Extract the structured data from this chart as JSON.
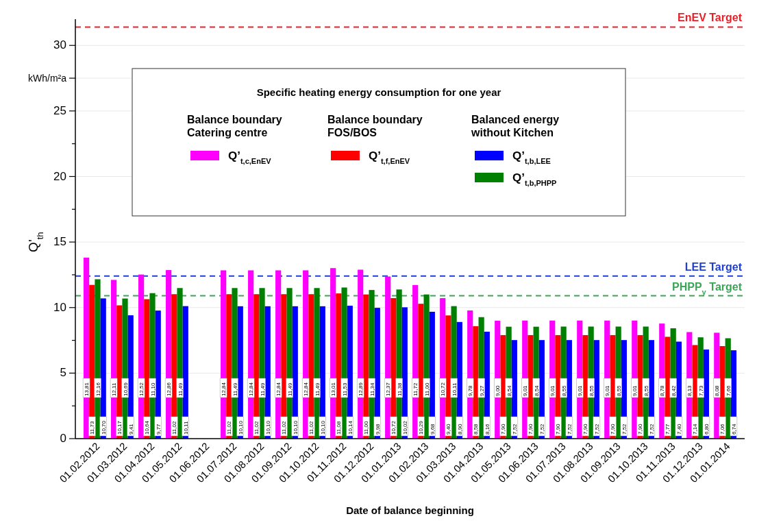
{
  "chart_data": {
    "type": "bar",
    "xlabel": "Date of balance beginning",
    "ylabel": "Q'$_{th}$",
    "legend_title": "Specific heating energy consumption for one year",
    "annotations": [
      "Balance boundary\nCatering centre",
      "Balance boundary\nFOS/BOS",
      "Balanced energy\nwithout Kitchen"
    ],
    "categories": [
      "01.02.2012",
      "01.03.2012",
      "01.04.2012",
      "01.05.2012",
      "01.06.2012",
      "01.07.2012",
      "01.08.2012",
      "01.09.2012",
      "01.10.2012",
      "01.11.2012",
      "01.12.2012",
      "01.01.2013",
      "01.02.2013",
      "01.03.2013",
      "01.04.2013",
      "01.05.2013",
      "01.06.2013",
      "01.07.2013",
      "01.08.2013",
      "01.09.2013",
      "01.10.2013",
      "01.11.2013",
      "01.12.2013",
      "01.01.2014"
    ],
    "series": [
      {
        "name": "Q’$_{t,c,EnEV}$",
        "color": "#ff00ff",
        "values": [
          13.81,
          12.11,
          12.52,
          12.86,
          null,
          12.84,
          12.84,
          12.84,
          12.84,
          13.01,
          12.89,
          12.37,
          11.72,
          10.72,
          9.78,
          9.0,
          9.01,
          9.01,
          9.01,
          9.01,
          9.01,
          8.78,
          8.13,
          8.08
        ],
        "value_labels": [
          "13,81",
          "12,11",
          "12,52",
          "12,86",
          null,
          "12,84",
          "12,84",
          "12,84",
          "12,84",
          "13,01",
          "12,89",
          "12,37",
          "11,72",
          "10,72",
          "9,78",
          "9,00",
          "9,01",
          "9,01",
          "9,01",
          "9,01",
          "9,01",
          "8,78",
          "8,13",
          "8,08"
        ]
      },
      {
        "name": "Q’$_{t,f,EnEV}$",
        "color": "#ff0000",
        "values": [
          11.73,
          10.17,
          10.64,
          11.02,
          null,
          11.02,
          11.02,
          11.02,
          11.02,
          11.08,
          11.0,
          10.72,
          10.29,
          9.4,
          8.58,
          7.9,
          7.9,
          7.9,
          7.9,
          7.9,
          7.9,
          7.77,
          7.14,
          7.06
        ],
        "value_labels": [
          "11,73",
          "10,17",
          "10,64",
          "11,02",
          null,
          "11,02",
          "11,02",
          "11,02",
          "11,02",
          "11,08",
          "11,00",
          "10,72",
          "10,29",
          "9,40",
          "8,58",
          "7,90",
          "7,90",
          "7,90",
          "7,90",
          "7,90",
          "7,90",
          "7,77",
          "7,14",
          "7,06"
        ]
      },
      {
        "name": "Q’$_{t,b,PHPP}$",
        "color": "#008000",
        "values": [
          12.16,
          10.69,
          11.1,
          11.49,
          null,
          11.49,
          11.49,
          11.49,
          11.49,
          11.53,
          11.34,
          11.38,
          11.0,
          10.11,
          9.27,
          8.54,
          8.54,
          8.55,
          8.55,
          8.55,
          8.55,
          8.42,
          7.73,
          7.66
        ],
        "value_labels": [
          "12,16",
          "10,69",
          "11,10",
          "11,49",
          null,
          "11,49",
          "11,49",
          "11,49",
          "11,49",
          "11,53",
          "11,34",
          "11,38",
          "11,00",
          "10,11",
          "9,27",
          "8,54",
          "8,54",
          "8,55",
          "8,55",
          "8,55",
          "8,55",
          "8,42",
          "7,73",
          "7,66"
        ]
      },
      {
        "name": "Q’$_{t,b,LEE}$",
        "color": "#0000ff",
        "values": [
          10.7,
          9.41,
          9.77,
          10.11,
          null,
          10.1,
          10.1,
          10.1,
          10.1,
          10.14,
          9.98,
          10.02,
          9.68,
          8.9,
          8.16,
          7.52,
          7.52,
          7.52,
          7.52,
          7.52,
          7.52,
          7.4,
          6.8,
          6.74
        ],
        "value_labels": [
          "10,70",
          "9,41",
          "9,77",
          "10,11",
          null,
          "10,10",
          "10,10",
          "10,10",
          "10,10",
          "10,14",
          "9,98",
          "10,02",
          "9,68",
          "8,90",
          "8,16",
          "7,52",
          "7,52",
          "7,52",
          "7,52",
          "7,52",
          "7,52",
          "7,40",
          "6,80",
          "6,74"
        ]
      }
    ],
    "ylim": [
      0,
      32
    ],
    "yticks": [
      0,
      {
        "value": 2.5,
        "label": null
      },
      5,
      {
        "value": 7.5,
        "label": null
      },
      10,
      {
        "value": 12.5,
        "label": null
      },
      15,
      {
        "value": 17.5,
        "label": null
      },
      20,
      {
        "value": 22.5,
        "label": null
      },
      25,
      {
        "value": 27.5,
        "label": "kWh/m²a"
      },
      30
    ],
    "grid": "y",
    "legend": "top",
    "ref_lines": [
      {
        "axis": "y",
        "value": 31.4,
        "label": "EnEV Target",
        "color": "#e8202a",
        "line_style": "dashed"
      },
      {
        "axis": "y",
        "value": 12.4,
        "label": "LEE Target",
        "color": "#1f3fd0",
        "line_style": "dashed"
      },
      {
        "axis": "y",
        "value": 10.9,
        "label": "PHPP$_{y}$ Target",
        "color": "#3aa655",
        "line_style": "dashed"
      }
    ]
  }
}
